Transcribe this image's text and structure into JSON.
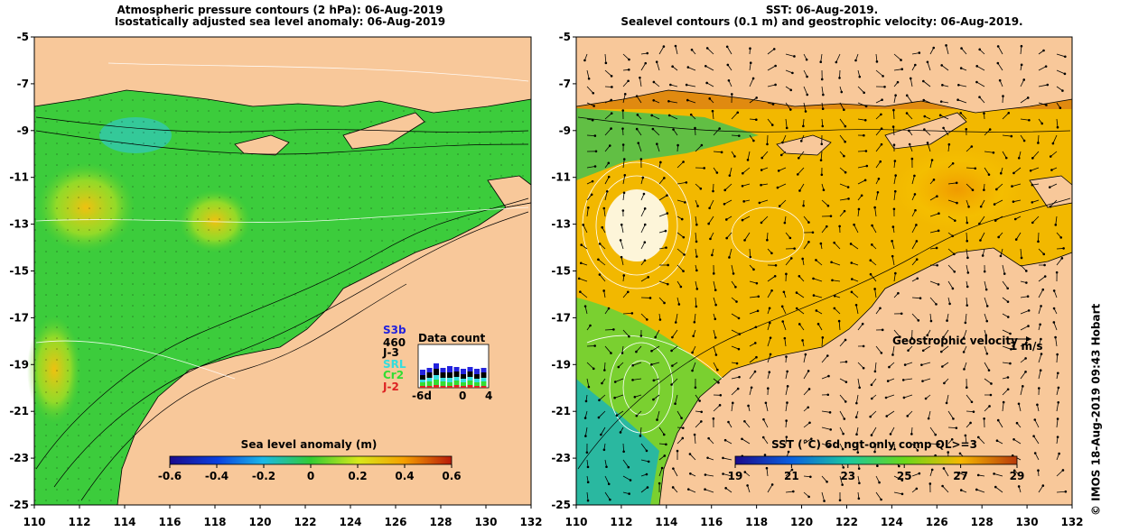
{
  "left_panel": {
    "title_line1": "Atmospheric pressure contours (2 hPa): 06-Aug-2019",
    "title_line2": "Isostatically adjusted sea level anomaly: 06-Aug-2019",
    "x_ticks": [
      "110",
      "112",
      "114",
      "116",
      "118",
      "120",
      "122",
      "124",
      "126",
      "128",
      "130",
      "132"
    ],
    "y_ticks": [
      "-5",
      "-7",
      "-9",
      "-11",
      "-13",
      "-15",
      "-17",
      "-19",
      "-21",
      "-23",
      "-25"
    ],
    "colorbar_label": "Sea level anomaly (m)",
    "colorbar_ticks": [
      "-0.6",
      "-0.4",
      "-0.2",
      "0",
      "0.2",
      "0.4",
      "0.6"
    ],
    "data_count": {
      "title": "Data count",
      "max_label": "460",
      "x_labels": [
        "-6d",
        "0",
        "4"
      ],
      "missions": [
        {
          "name": "S3b",
          "color": "#2222dd"
        },
        {
          "name": "J-3",
          "color": "#000000"
        },
        {
          "name": "SRL",
          "color": "#33dddd"
        },
        {
          "name": "Cr2",
          "color": "#33dd33"
        },
        {
          "name": "J-2",
          "color": "#dd2222"
        }
      ]
    }
  },
  "right_panel": {
    "title_line1": "SST: 06-Aug-2019.",
    "title_line2": "Sealevel contours (0.1 m) and geostrophic velocity: 06-Aug-2019.",
    "x_ticks": [
      "110",
      "112",
      "114",
      "116",
      "118",
      "120",
      "122",
      "124",
      "126",
      "128",
      "130",
      "132"
    ],
    "y_ticks": [
      "-5",
      "-7",
      "-9",
      "-11",
      "-13",
      "-15",
      "-17",
      "-19",
      "-21",
      "-23",
      "-25"
    ],
    "colorbar_label": "SST (°C) 6d ngt-only comp QL>=3",
    "colorbar_ticks": [
      "19",
      "21",
      "23",
      "25",
      "27",
      "29"
    ],
    "velocity_legend": "Geostrophic velocity",
    "velocity_scale": "1 m/s"
  },
  "credit": "© IMOS 18-Aug-2019 09:43 Hobart",
  "colors": {
    "land": "#f8c89a",
    "sla_ocean": "#3ccc3c",
    "sst_ocean": "#f5b400"
  }
}
